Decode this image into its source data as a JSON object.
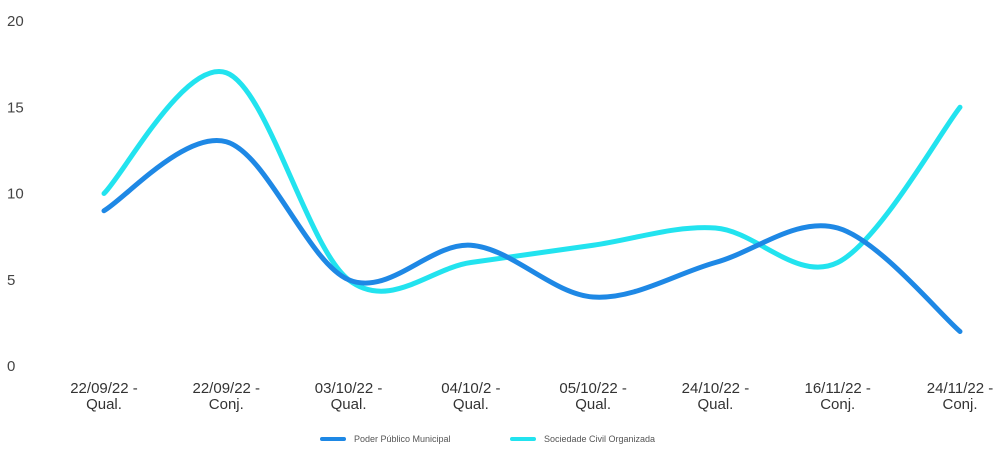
{
  "chart_data": {
    "type": "line",
    "categories": [
      [
        "22/09/22 -",
        "Qual."
      ],
      [
        "22/09/22 -",
        "Conj."
      ],
      [
        "03/10/22 -",
        "Qual."
      ],
      [
        "04/10/2 -",
        "Qual."
      ],
      [
        "05/10/22 -",
        "Qual."
      ],
      [
        "24/10/22 -",
        "Qual."
      ],
      [
        "16/11/22 -",
        "Conj."
      ],
      [
        "24/11/22 -",
        "Conj."
      ]
    ],
    "series": [
      {
        "name": "Poder Público Municipal",
        "color": "#1e88e5",
        "values": [
          9,
          13,
          5,
          7,
          4,
          6,
          8,
          2
        ]
      },
      {
        "name": "Sociedade Civil Organizada",
        "color": "#22e3ef",
        "values": [
          10,
          17,
          5,
          6,
          7,
          8,
          6,
          15
        ]
      }
    ],
    "ylim": [
      0,
      20
    ],
    "yticks": [
      0,
      5,
      10,
      15,
      20
    ],
    "smooth": true,
    "grid": false,
    "legend_position": "bottom-center"
  }
}
